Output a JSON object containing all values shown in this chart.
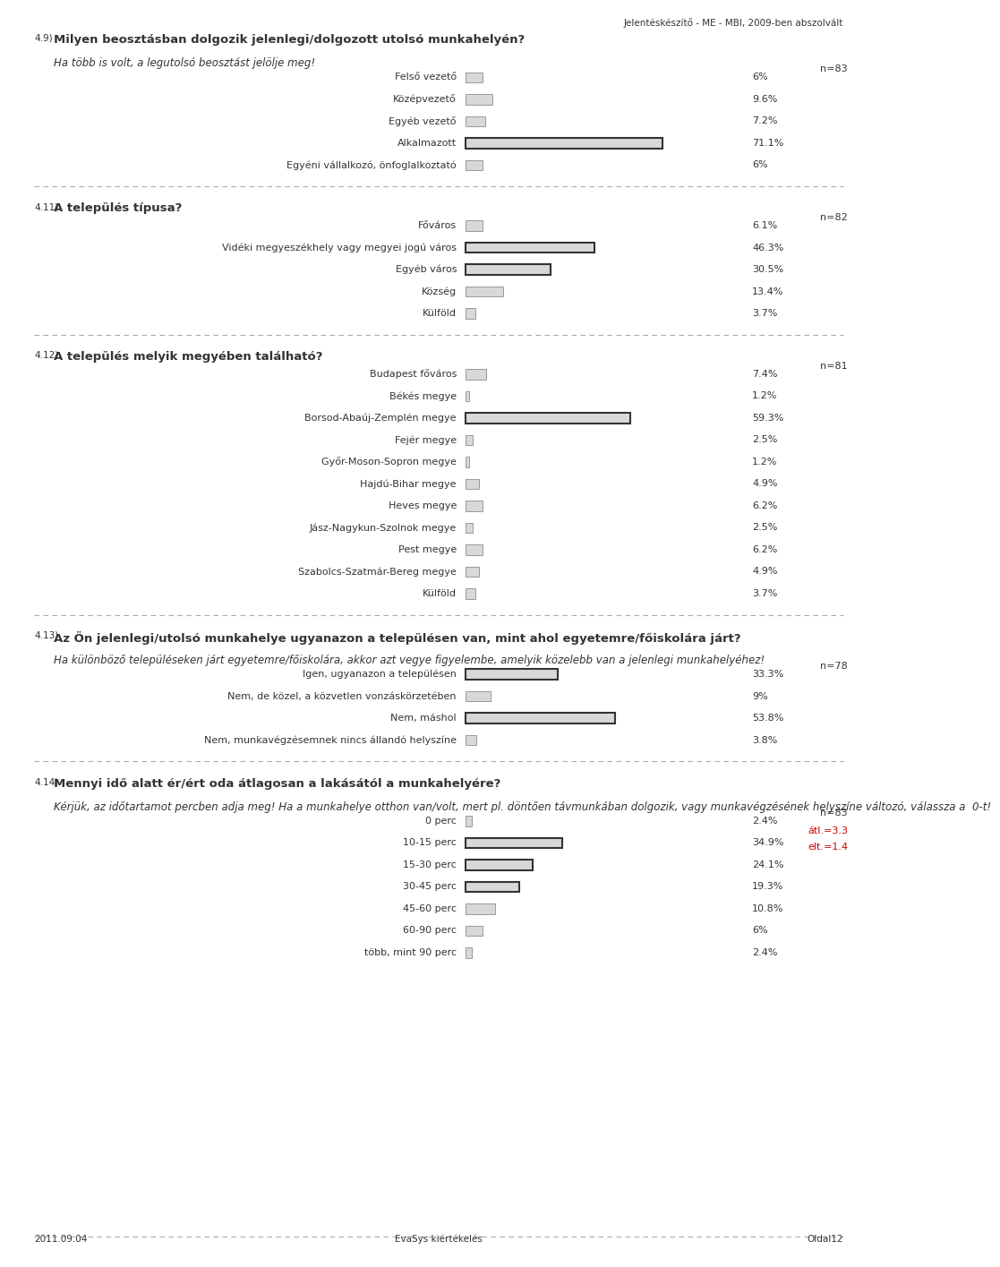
{
  "header": "Jelentéskészítő - ME - MBI, 2009-ben abszolvált",
  "footer_left": "2011.09.04",
  "footer_center": "EvaSys kiértékelés",
  "footer_right": "Oldal12",
  "sections": [
    {
      "number": "4.9)",
      "title": "Milyen beosztásban dolgozik jelenlegi/dolgozott utolsó munkahelyén?",
      "subtitle": "Ha több is volt, a legutolsó beosztást jelölje meg!",
      "n_label": "n=83",
      "border_special": [
        3
      ],
      "categories": [
        "Felső vezető",
        "Középvezető",
        "Egyéb vezető",
        "Alkalmazott",
        "Egyéni vállalkozó, önfoglalkoztató"
      ],
      "values": [
        6.0,
        9.6,
        7.2,
        71.1,
        6.0
      ],
      "value_labels": [
        "6%",
        "9.6%",
        "7.2%",
        "71.1%",
        "6%"
      ]
    },
    {
      "number": "4.11)",
      "title": "A település típusa?",
      "subtitle": null,
      "n_label": "n=82",
      "border_special": [
        1,
        2
      ],
      "categories": [
        "Főváros",
        "Vidéki megyeszékhely vagy megyei jogú város",
        "Egyéb város",
        "Község",
        "Külföld"
      ],
      "values": [
        6.1,
        46.3,
        30.5,
        13.4,
        3.7
      ],
      "value_labels": [
        "6.1%",
        "46.3%",
        "30.5%",
        "13.4%",
        "3.7%"
      ]
    },
    {
      "number": "4.12)",
      "title": "A település melyik megyében található?",
      "subtitle": null,
      "n_label": "n=81",
      "border_special": [
        2
      ],
      "categories": [
        "Budapest főváros",
        "Békés megye",
        "Borsod-Abaúj-Zemplén megye",
        "Fejér megye",
        "Győr-Moson-Sopron megye",
        "Hajdú-Bihar megye",
        "Heves megye",
        "Jász-Nagykun-Szolnok megye",
        "Pest megye",
        "Szabolcs-Szatmár-Bereg megye",
        "Külföld"
      ],
      "values": [
        7.4,
        1.2,
        59.3,
        2.5,
        1.2,
        4.9,
        6.2,
        2.5,
        6.2,
        4.9,
        3.7
      ],
      "value_labels": [
        "7.4%",
        "1.2%",
        "59.3%",
        "2.5%",
        "1.2%",
        "4.9%",
        "6.2%",
        "2.5%",
        "6.2%",
        "4.9%",
        "3.7%"
      ]
    },
    {
      "number": "4.13)",
      "title": "Az Ön jelenlegi/utolsó munkahelye ugyanazon a településen van, mint ahol egyetemre/főiskolára járt?",
      "subtitle": "Ha különböző településeken járt egyetemre/főiskolára, akkor azt vegye figyelembe, amelyik közelebb van a jelenlegi munkahelyéhez!",
      "n_label": "n=78",
      "border_special": [
        0,
        2
      ],
      "categories": [
        "Igen, ugyanazon a településen",
        "Nem, de közel, a közvetlen vonzáskörzetében",
        "Nem, máshol",
        "Nem, munkavégzésemnek nincs állandó helyszíne"
      ],
      "values": [
        33.3,
        9.0,
        53.8,
        3.8
      ],
      "value_labels": [
        "33.3%",
        "9%",
        "53.8%",
        "3.8%"
      ]
    },
    {
      "number": "4.14)",
      "title": "Mennyi idő alatt ér/ért oda átlagosan a lakásától a munkahelyére?",
      "subtitle": "Kérjük, az időtartamot percben adja meg! Ha a munkahelye otthon van/volt, mert pl. döntően távmunkában dolgozik, vagy munkavégzésének helyszíne változó, válassza a  0-t!",
      "n_label": "n=83",
      "extra_labels": [
        "átl.=3.3",
        "elt.=1.4"
      ],
      "border_special": [
        1,
        2,
        3
      ],
      "categories": [
        "0 perc",
        "10-15 perc",
        "15-30 perc",
        "30-45 perc",
        "45-60 perc",
        "60-90 perc",
        "több, mint 90 perc"
      ],
      "values": [
        2.4,
        34.9,
        24.1,
        19.3,
        10.8,
        6.0,
        2.4
      ],
      "value_labels": [
        "2.4%",
        "34.9%",
        "24.1%",
        "19.3%",
        "10.8%",
        "6%",
        "2.4%"
      ]
    }
  ],
  "bar_fill": "#d8d8d8",
  "bar_border_normal": "#999999",
  "bar_border_bold": "#333333",
  "text_color": "#333333",
  "dashed_color": "#aaaaaa",
  "red_color": "#cc0000",
  "fs_header": 7.5,
  "fs_section_num": 7.5,
  "fs_title": 9.5,
  "fs_subtitle": 8.5,
  "fs_label": 8.0,
  "fs_value": 8.0,
  "fs_n": 8.0,
  "fs_footer": 7.5
}
